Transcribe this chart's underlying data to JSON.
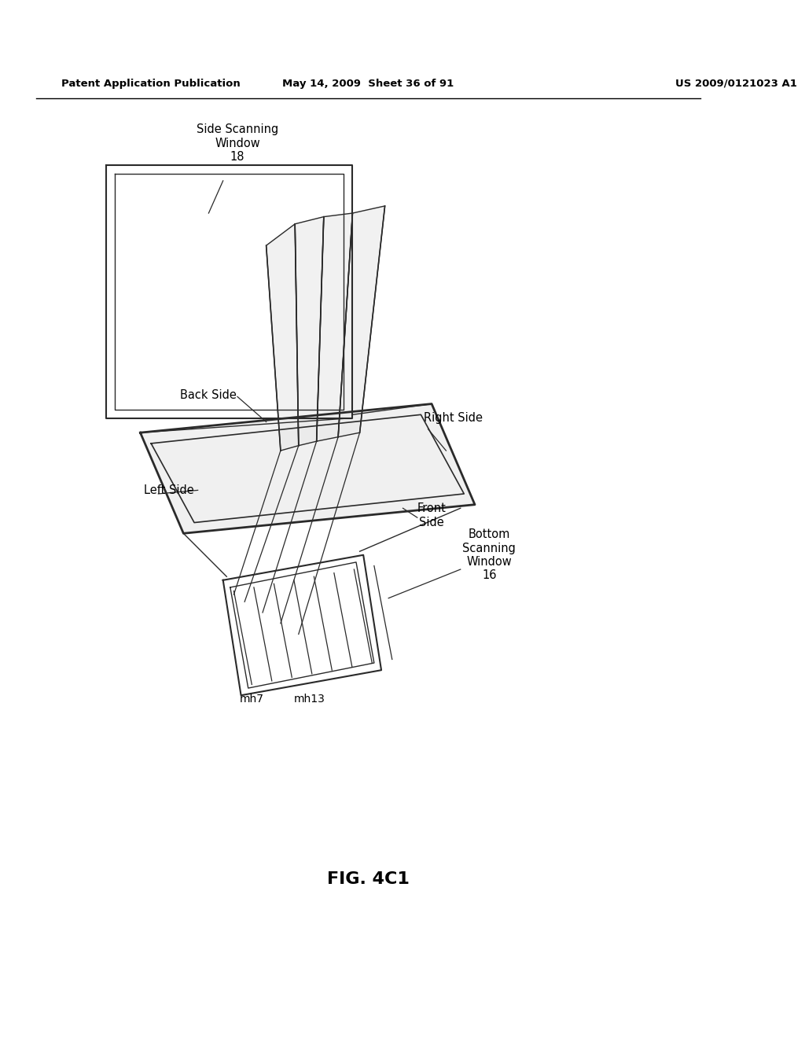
{
  "background_color": "#ffffff",
  "line_color": "#2a2a2a",
  "title_text": "FIG. 4C1",
  "header_left": "Patent Application Publication",
  "header_center": "May 14, 2009  Sheet 36 of 91",
  "header_right": "US 2009/0121023 A1",
  "labels": {
    "side_scanning_window": "Side Scanning\nWindow\n18",
    "back_side": "Back Side",
    "left_side": "Left Side",
    "right_side": "Right Side",
    "front_side": "Front\nSide",
    "bottom_scanning_window": "Bottom\nScanning\nWindow\n16",
    "mh7": "mh7",
    "mh13": "mh13"
  }
}
